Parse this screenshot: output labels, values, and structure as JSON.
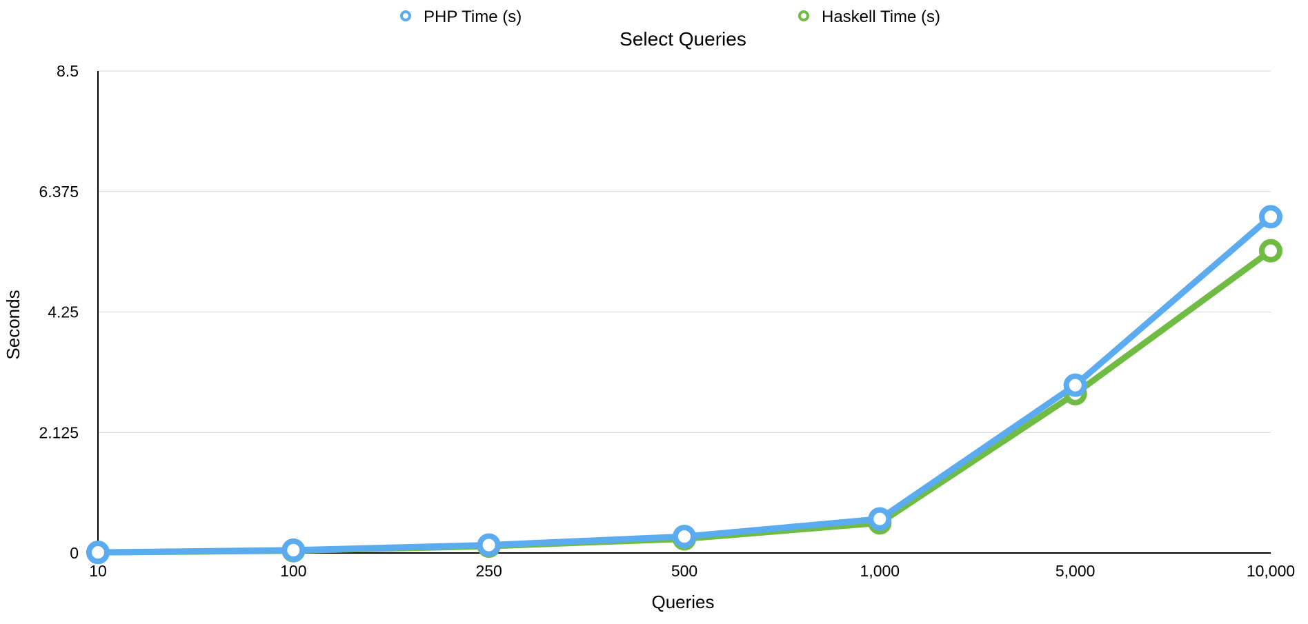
{
  "chart_data": {
    "type": "line",
    "title": "Select Queries",
    "xlabel": "Queries",
    "ylabel": "Seconds",
    "categories": [
      "10",
      "100",
      "250",
      "500",
      "1,000",
      "5,000",
      "10,000"
    ],
    "yticks": [
      "0",
      "2.125",
      "4.25",
      "6.375",
      "8.5"
    ],
    "ylim": [
      0,
      8.5
    ],
    "grid": true,
    "legend_position": "top",
    "series": [
      {
        "name": "PHP Time (s)",
        "color": "#5aabf0",
        "values": [
          0.01,
          0.05,
          0.14,
          0.29,
          0.6,
          2.96,
          5.93
        ]
      },
      {
        "name": "Haskell Time (s)",
        "color": "#6fbb44",
        "values": [
          0.01,
          0.04,
          0.12,
          0.25,
          0.53,
          2.81,
          5.33
        ]
      }
    ]
  }
}
